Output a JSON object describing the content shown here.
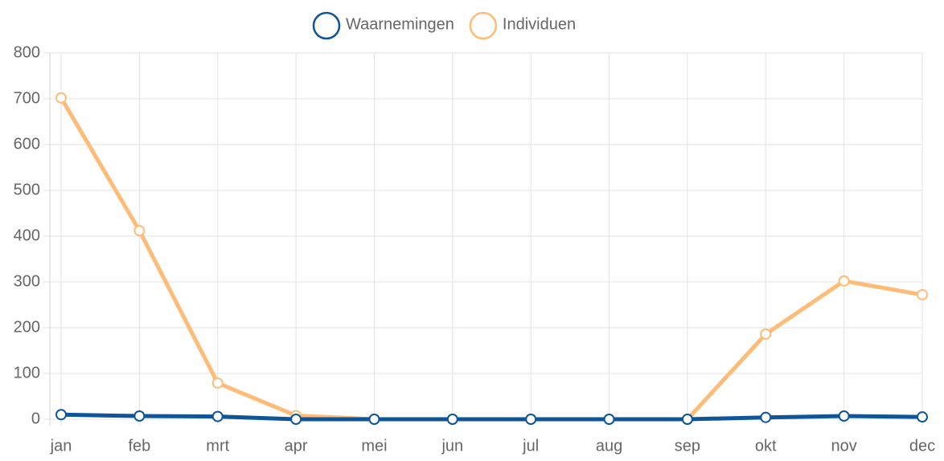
{
  "chart_data": {
    "type": "line",
    "categories": [
      "jan",
      "feb",
      "mrt",
      "apr",
      "mei",
      "jun",
      "jul",
      "aug",
      "sep",
      "okt",
      "nov",
      "dec"
    ],
    "series": [
      {
        "name": "Waarnemingen",
        "color": "#0f5598",
        "values": [
          10,
          7,
          6,
          0,
          0,
          0,
          0,
          0,
          0,
          4,
          7,
          5
        ]
      },
      {
        "name": "Individuen",
        "color": "#ffbb78",
        "values": [
          702,
          412,
          79,
          8,
          0,
          0,
          0,
          0,
          0,
          186,
          302,
          272
        ]
      }
    ],
    "ylim": [
      0,
      800
    ],
    "yticks": [
      0,
      100,
      200,
      300,
      400,
      500,
      600,
      700,
      800
    ],
    "grid": true,
    "legend": "top"
  }
}
